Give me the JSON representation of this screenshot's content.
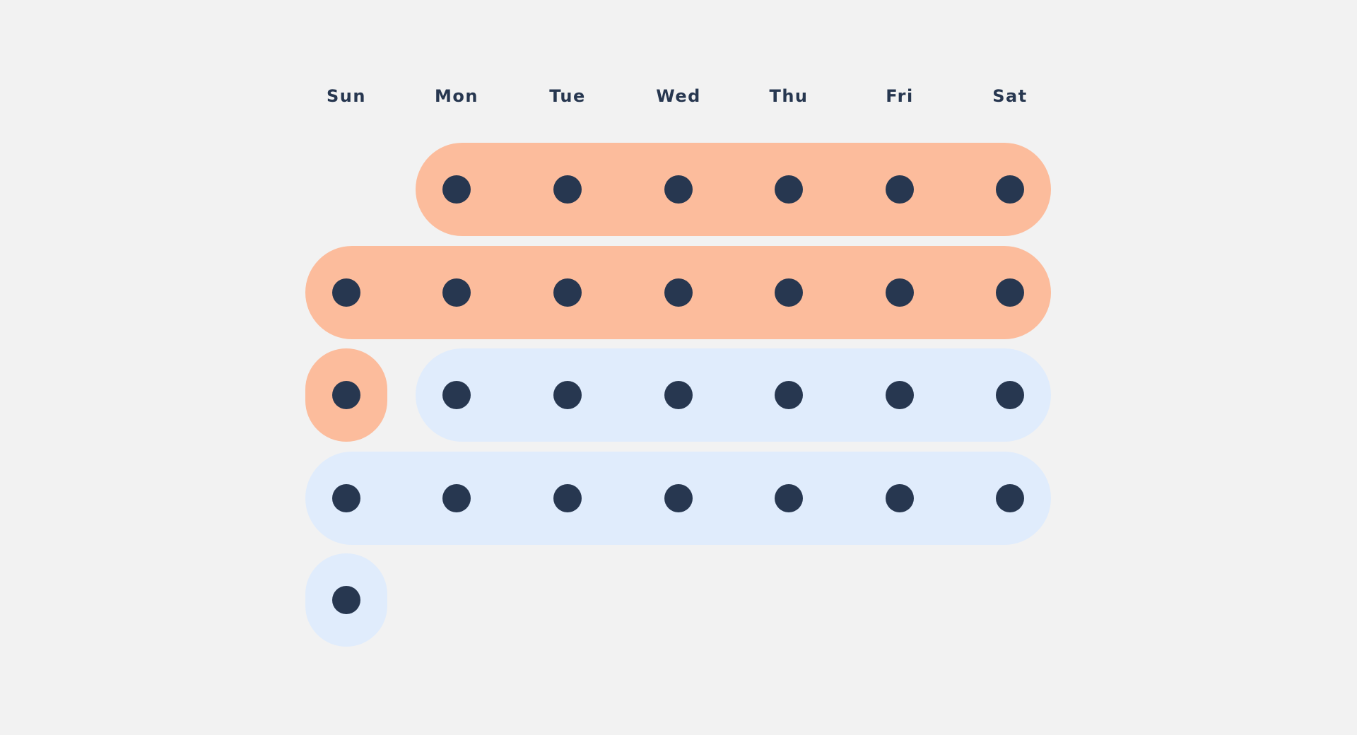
{
  "weekdays": [
    "Sun",
    "Mon",
    "Tue",
    "Wed",
    "Thu",
    "Fri",
    "Sat"
  ],
  "colors": {
    "background": "#f2f2f2",
    "label": "#273750",
    "dot": "#273750",
    "highlighted": "#fcbc9c",
    "normal": "#e0ecfc"
  },
  "weeks": [
    {
      "bands": [
        {
          "start": 1,
          "end": 6,
          "style": "highlighted"
        }
      ]
    },
    {
      "bands": [
        {
          "start": 0,
          "end": 6,
          "style": "highlighted"
        }
      ]
    },
    {
      "bands": [
        {
          "start": 0,
          "end": 0,
          "style": "highlighted"
        },
        {
          "start": 1,
          "end": 6,
          "style": "normal"
        }
      ]
    },
    {
      "bands": [
        {
          "start": 0,
          "end": 6,
          "style": "normal"
        }
      ]
    },
    {
      "bands": [
        {
          "start": 0,
          "end": 0,
          "style": "normal"
        }
      ]
    }
  ]
}
